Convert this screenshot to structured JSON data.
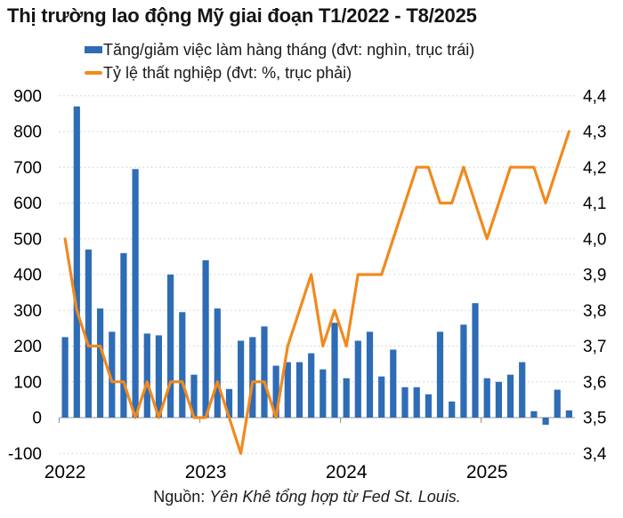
{
  "title": "Thị trường lao động Mỹ giai đoạn T1/2022 - T8/2025",
  "legend_items": [
    {
      "marker": "blue-square",
      "label": "Tăng/giảm việc làm hàng tháng (đvt: nghìn, trục trái)"
    },
    {
      "marker": "orange-line",
      "label": "Tỷ lệ thất nghiệp (đvt: %, trục phải)"
    }
  ],
  "source": {
    "prefix": "Nguồn:",
    "text": "Yên Khê tổng hợp từ Fed St. Louis."
  },
  "colors": {
    "bar": "#2e6cb5",
    "line": "#f08a1e",
    "grid": "#cccccc",
    "axis": "#b9b9b9",
    "tick_mark": "#9a9a9a",
    "text": "#000000"
  },
  "chart_data": {
    "type": "bar+line combo",
    "x": [
      "T1/2022",
      "T2/2022",
      "T3/2022",
      "T4/2022",
      "T5/2022",
      "T6/2022",
      "T7/2022",
      "T8/2022",
      "T9/2022",
      "T10/2022",
      "T11/2022",
      "T12/2022",
      "T1/2023",
      "T2/2023",
      "T3/2023",
      "T4/2023",
      "T5/2023",
      "T6/2023",
      "T7/2023",
      "T8/2023",
      "T9/2023",
      "T10/2023",
      "T11/2023",
      "T12/2023",
      "T1/2024",
      "T2/2024",
      "T3/2024",
      "T4/2024",
      "T5/2024",
      "T6/2024",
      "T7/2024",
      "T8/2024",
      "T9/2024",
      "T10/2024",
      "T11/2024",
      "T12/2024",
      "T1/2025",
      "T2/2025",
      "T3/2025",
      "T4/2025",
      "T5/2025",
      "T6/2025",
      "T7/2025",
      "T8/2025"
    ],
    "series": [
      {
        "name": "Tăng/giảm việc làm hàng tháng (nghìn)",
        "type": "bar",
        "axis": "left",
        "values": [
          225,
          870,
          470,
          305,
          240,
          460,
          695,
          235,
          230,
          400,
          295,
          120,
          440,
          305,
          80,
          215,
          225,
          255,
          145,
          155,
          155,
          180,
          135,
          265,
          110,
          215,
          240,
          115,
          190,
          85,
          85,
          65,
          240,
          45,
          260,
          320,
          110,
          100,
          120,
          155,
          18,
          -20,
          78,
          20
        ]
      },
      {
        "name": "Tỷ lệ thất nghiệp (%)",
        "type": "line",
        "axis": "right",
        "values": [
          4.0,
          3.8,
          3.7,
          3.7,
          3.6,
          3.6,
          3.5,
          3.6,
          3.5,
          3.6,
          3.6,
          3.5,
          3.5,
          3.6,
          3.5,
          3.4,
          3.6,
          3.6,
          3.5,
          3.7,
          3.8,
          3.9,
          3.7,
          3.8,
          3.7,
          3.9,
          3.9,
          3.9,
          4.0,
          4.1,
          4.2,
          4.2,
          4.1,
          4.1,
          4.2,
          4.1,
          4.0,
          4.1,
          4.2,
          4.2,
          4.2,
          4.1,
          4.2,
          4.3
        ]
      }
    ],
    "left_axis": {
      "ticks": [
        "900",
        "800",
        "700",
        "600",
        "500",
        "400",
        "300",
        "200",
        "100",
        "0",
        "-100"
      ],
      "range": [
        -100,
        900
      ]
    },
    "right_axis": {
      "ticks": [
        "4,4",
        "4,3",
        "4,2",
        "4,1",
        "4,0",
        "3,9",
        "3,8",
        "3,7",
        "3,6",
        "3,5",
        "3,4"
      ],
      "range": [
        3.4,
        4.4
      ]
    },
    "x_labels": [
      "2022",
      "2023",
      "2024",
      "2025"
    ],
    "grid": "dotted horizontal gridlines, solid zero axis",
    "legend_position": "top-left, two rows"
  }
}
